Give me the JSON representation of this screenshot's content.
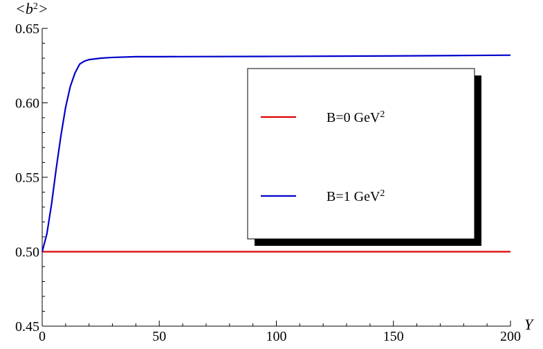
{
  "chart_data": {
    "type": "line",
    "title": "",
    "xlabel": "Y",
    "ylabel_parts": {
      "open": "<",
      "var": "b",
      "sup": "2",
      "close": ">"
    },
    "xlim": [
      0,
      200
    ],
    "ylim": [
      0.45,
      0.65
    ],
    "x_ticks": [
      0,
      50,
      100,
      150,
      200
    ],
    "x_tick_labels": [
      "0",
      "50",
      "100",
      "150",
      "200"
    ],
    "y_ticks": [
      0.45,
      0.5,
      0.55,
      0.6,
      0.65
    ],
    "y_tick_labels": [
      "0.45",
      "0.50",
      "0.55",
      "0.60",
      "0.65"
    ],
    "grid": false,
    "legend_position": "right",
    "series": [
      {
        "name": "B=0 GeV2",
        "label": {
          "text": "B=0 GeV",
          "sup": "2"
        },
        "color": "#dd0000",
        "x": [
          0,
          200
        ],
        "y": [
          0.5,
          0.5
        ]
      },
      {
        "name": "B=1 GeV2",
        "label": {
          "text": "B=1 GeV",
          "sup": "2"
        },
        "color": "#0000cc",
        "x": [
          0,
          2,
          4,
          6,
          8,
          10,
          12,
          14,
          16,
          18,
          20,
          25,
          30,
          40,
          50,
          100,
          150,
          200
        ],
        "y": [
          0.5,
          0.512,
          0.532,
          0.556,
          0.578,
          0.597,
          0.611,
          0.62,
          0.626,
          0.628,
          0.629,
          0.63,
          0.6305,
          0.631,
          0.631,
          0.6312,
          0.6315,
          0.632
        ]
      }
    ]
  }
}
